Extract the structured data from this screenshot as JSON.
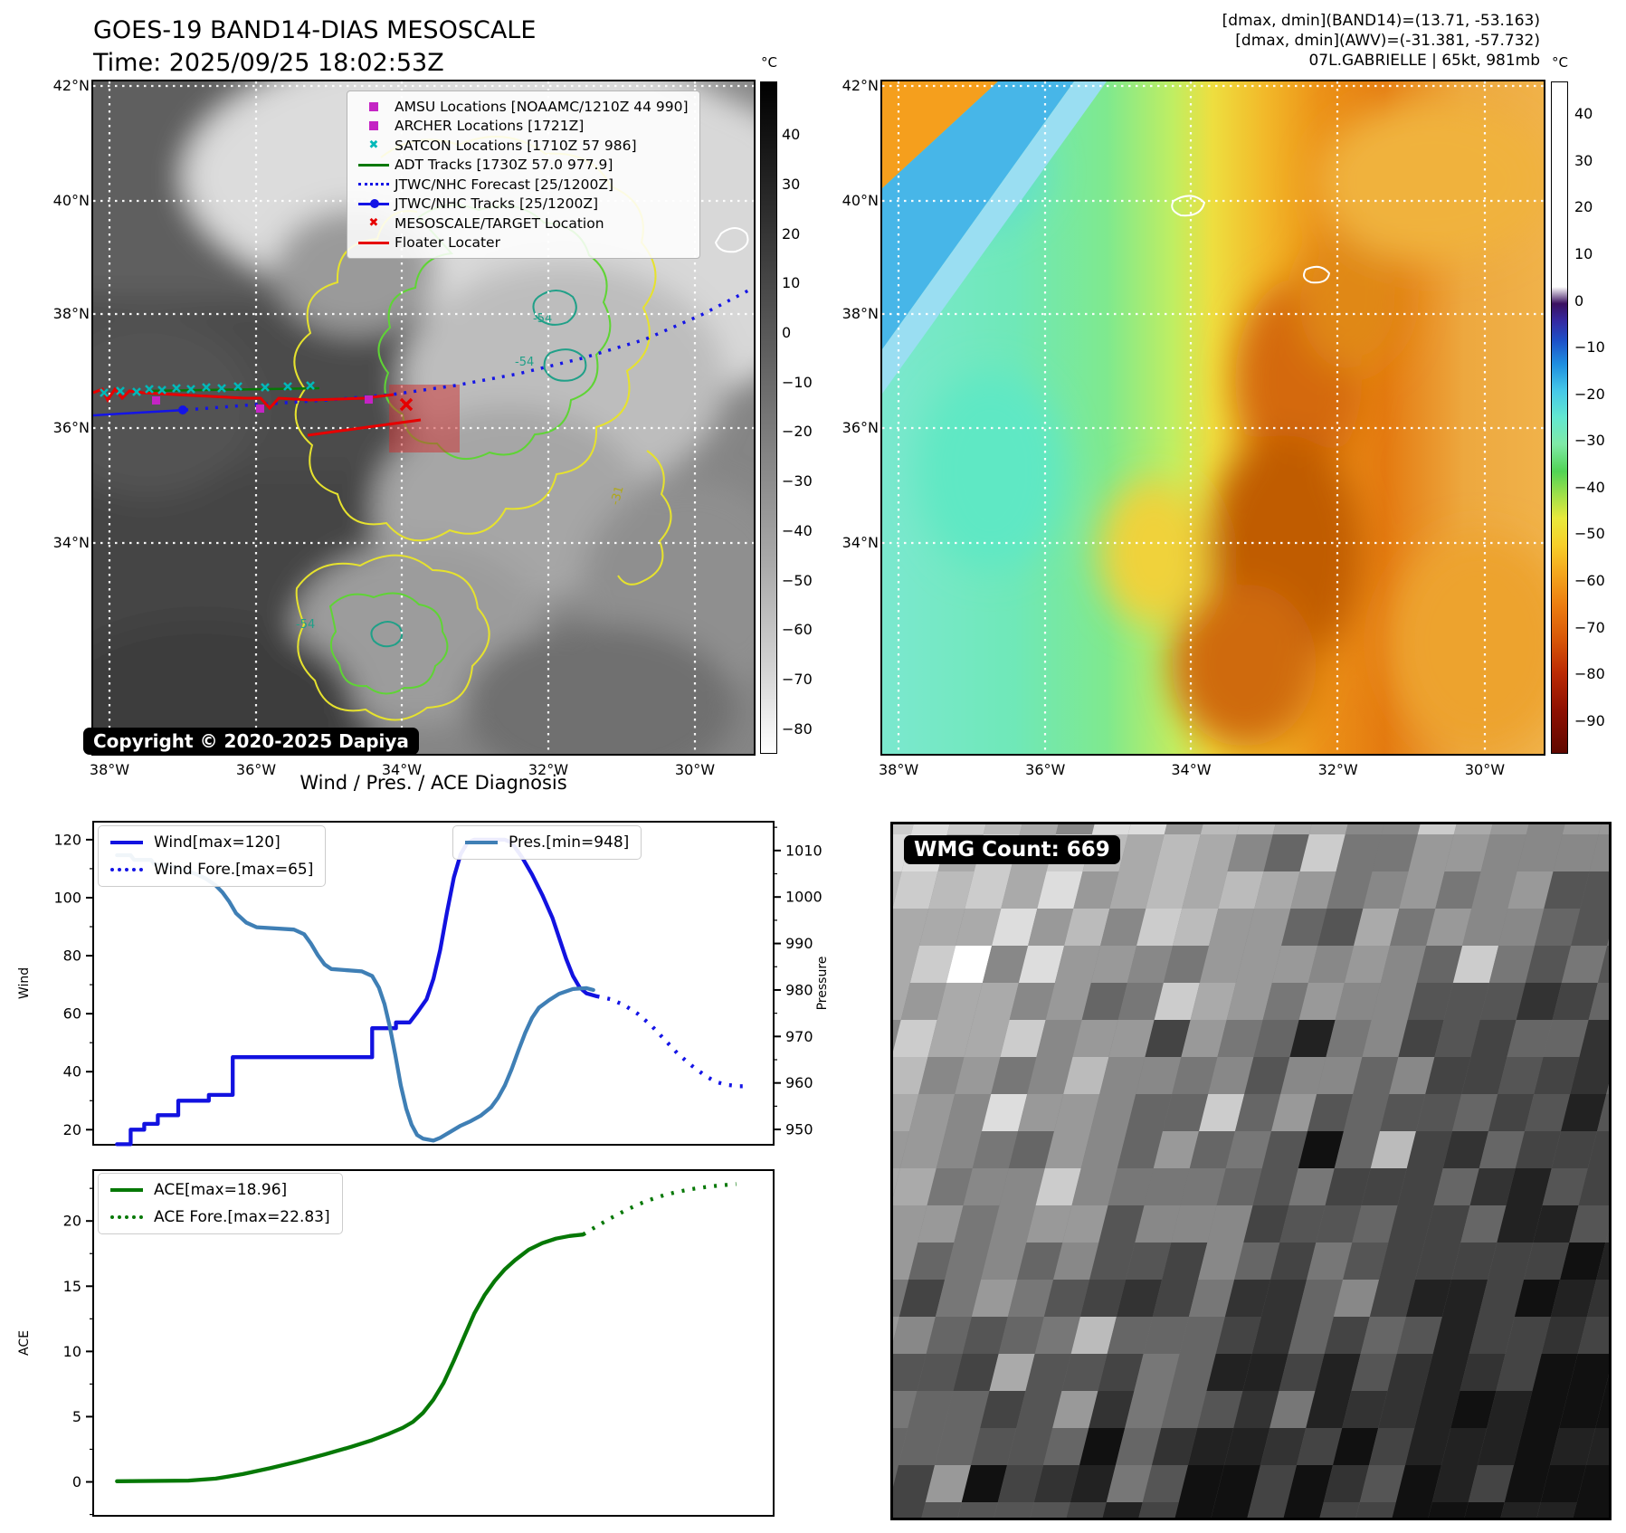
{
  "header": {
    "title_line1": "GOES-19 BAND14-DIAS MESOSCALE",
    "title_line2": "Time: 2025/09/25 18:02:53Z",
    "info_lines": [
      "[dmax, dmin](BAND14)=(13.71, -53.163)",
      "[dmax, dmin](AWV)=(-31.381, -57.732)",
      "07L.GABRIELLE | 65kt, 981mb"
    ]
  },
  "band14_map": {
    "lat_labels": [
      "42°N",
      "40°N",
      "38°N",
      "36°N",
      "34°N"
    ],
    "lon_labels": [
      "38°W",
      "36°W",
      "34°W",
      "32°W",
      "30°W"
    ],
    "copyright": "Copyright © 2020-2025 Dapiya",
    "contour_labels": [
      "-54",
      "-54",
      "-31",
      "-54"
    ],
    "legend_items": [
      {
        "label": "AMSU Locations [NOAAMC/1210Z 44 990]",
        "marker": "square",
        "color": "#c424c4"
      },
      {
        "label": "ARCHER Locations [1721Z]",
        "marker": "square",
        "color": "#c424c4"
      },
      {
        "label": "SATCON Locations [1710Z 57 986]",
        "marker": "x",
        "color": "#00b8b8"
      },
      {
        "label": "ADT Tracks [1730Z 57.0 977.9]",
        "marker": "line",
        "color": "#067806"
      },
      {
        "label": "JTWC/NHC Forecast [25/1200Z]",
        "marker": "dotted",
        "color": "#1414e6"
      },
      {
        "label": "JTWC/NHC Tracks [25/1200Z]",
        "marker": "line-dot",
        "color": "#1414e6"
      },
      {
        "label": "MESOSCALE/TARGET Location",
        "marker": "x",
        "color": "#e60000"
      },
      {
        "label": "Floater Locater",
        "marker": "line",
        "color": "#e60000"
      }
    ],
    "colorbar": {
      "unit": "°C",
      "vmax": 50.8,
      "vmin": -85,
      "ticks": [
        40,
        30,
        20,
        10,
        0,
        -10,
        -20,
        -30,
        -40,
        -50,
        -60,
        -70,
        -80
      ]
    }
  },
  "awv_map": {
    "lat_labels": [
      "42°N",
      "40°N",
      "38°N",
      "36°N",
      "34°N"
    ],
    "lon_labels": [
      "38°W",
      "36°W",
      "34°W",
      "32°W",
      "30°W"
    ],
    "colorbar": {
      "unit": "°C",
      "vmax": 47,
      "vmin": -97,
      "ticks": [
        40,
        30,
        20,
        10,
        0,
        -10,
        -20,
        -30,
        -40,
        -50,
        -60,
        -70,
        -80,
        -90
      ]
    }
  },
  "wmg_panel": {
    "label": "WMG Count: 669"
  },
  "chart_data": [
    {
      "type": "line",
      "title": "Wind / Pres. / ACE Diagnosis",
      "xlabel": "",
      "ylabel": "Wind",
      "y2label": "Pressure",
      "ylim": [
        14.8,
        126.2
      ],
      "yticks": [
        20,
        40,
        60,
        80,
        100,
        120
      ],
      "y2lim": [
        946.7,
        1016.2
      ],
      "y2ticks": [
        950,
        960,
        970,
        980,
        990,
        1000,
        1010
      ],
      "grid": false,
      "series": [
        {
          "name": "Wind[max=120]",
          "axis": "y",
          "style": "solid",
          "color": "#1212e0",
          "points": [
            [
              3.5,
              15
            ],
            [
              5.5,
              15
            ],
            [
              5.5,
              20
            ],
            [
              7.5,
              20
            ],
            [
              7.5,
              22
            ],
            [
              9.5,
              22
            ],
            [
              9.5,
              25
            ],
            [
              12.5,
              25
            ],
            [
              12.5,
              30
            ],
            [
              17,
              30
            ],
            [
              17,
              32
            ],
            [
              20.5,
              32
            ],
            [
              20.5,
              45
            ],
            [
              41,
              45
            ],
            [
              41,
              55
            ],
            [
              44.5,
              55
            ],
            [
              44.5,
              57
            ],
            [
              46.5,
              57
            ],
            [
              47.5,
              60
            ],
            [
              49,
              65
            ],
            [
              50,
              72
            ],
            [
              51,
              82
            ],
            [
              52,
              95
            ],
            [
              53,
              107
            ],
            [
              54,
              115
            ],
            [
              55,
              119
            ],
            [
              56,
              120
            ],
            [
              60.5,
              120
            ],
            [
              61.5,
              119
            ],
            [
              63,
              114
            ],
            [
              64.5,
              108
            ],
            [
              66,
              101
            ],
            [
              67.5,
              93
            ],
            [
              68.5,
              86
            ],
            [
              69.5,
              79
            ],
            [
              70.5,
              73
            ],
            [
              71.5,
              69
            ],
            [
              72.5,
              67
            ],
            [
              74,
              66
            ]
          ]
        },
        {
          "name": "Wind Fore.[max=65]",
          "axis": "y",
          "style": "dotted",
          "color": "#1414e6",
          "points": [
            [
              74,
              66
            ],
            [
              76,
              65
            ],
            [
              78,
              63
            ],
            [
              80,
              60
            ],
            [
              82,
              56
            ],
            [
              84,
              51
            ],
            [
              86,
              46
            ],
            [
              88,
              42
            ],
            [
              90,
              38.5
            ],
            [
              91.5,
              36.5
            ],
            [
              93,
              35.5
            ],
            [
              95,
              35
            ],
            [
              96.5,
              35
            ]
          ]
        },
        {
          "name": "Pres.[min=948]",
          "axis": "y2",
          "style": "solid",
          "color": "#3f7fb5",
          "points": [
            [
              3.5,
              1009
            ],
            [
              5.5,
              1009
            ],
            [
              6,
              1008
            ],
            [
              8.5,
              1008
            ],
            [
              9,
              1007
            ],
            [
              12,
              1006.5
            ],
            [
              13,
              1006
            ],
            [
              15,
              1005
            ],
            [
              16.5,
              1004
            ],
            [
              18,
              1002.5
            ],
            [
              19,
              1001
            ],
            [
              20,
              999
            ],
            [
              21,
              996.5
            ],
            [
              22.5,
              994.5
            ],
            [
              24,
              993.5
            ],
            [
              29.5,
              993
            ],
            [
              31,
              992
            ],
            [
              32,
              990
            ],
            [
              33,
              987.5
            ],
            [
              34,
              985.5
            ],
            [
              35,
              984.5
            ],
            [
              39.5,
              984
            ],
            [
              41,
              983
            ],
            [
              42,
              980.5
            ],
            [
              42.8,
              977
            ],
            [
              43.6,
              972
            ],
            [
              44.4,
              966
            ],
            [
              45.2,
              959.5
            ],
            [
              46,
              954.5
            ],
            [
              46.8,
              951
            ],
            [
              47.6,
              948.8
            ],
            [
              48.5,
              948
            ],
            [
              50,
              947.6
            ],
            [
              51,
              948.2
            ],
            [
              52.5,
              949.5
            ],
            [
              54,
              950.8
            ],
            [
              55.5,
              951.8
            ],
            [
              57,
              953
            ],
            [
              58.5,
              954.8
            ],
            [
              59.5,
              956.8
            ],
            [
              60.5,
              959.5
            ],
            [
              61.5,
              963
            ],
            [
              62.5,
              967
            ],
            [
              63.5,
              970.8
            ],
            [
              64.5,
              974
            ],
            [
              65.5,
              976.2
            ],
            [
              67,
              977.8
            ],
            [
              68.5,
              979.2
            ],
            [
              70.5,
              980.2
            ],
            [
              72.5,
              980.4
            ],
            [
              73.5,
              980
            ]
          ]
        }
      ]
    },
    {
      "type": "line",
      "title": "",
      "xlabel": "",
      "ylabel": "ACE",
      "ylim": [
        -2.6,
        23.9
      ],
      "yticks": [
        0,
        5,
        10,
        15,
        20
      ],
      "grid": false,
      "series": [
        {
          "name": "ACE[max=18.96]",
          "axis": "y",
          "style": "solid",
          "color": "#067806",
          "points": [
            [
              3.5,
              0.05
            ],
            [
              14,
              0.1
            ],
            [
              18,
              0.25
            ],
            [
              22,
              0.6
            ],
            [
              26,
              1.05
            ],
            [
              30,
              1.55
            ],
            [
              34,
              2.1
            ],
            [
              38,
              2.7
            ],
            [
              41,
              3.2
            ],
            [
              43.5,
              3.7
            ],
            [
              45.5,
              4.15
            ],
            [
              47,
              4.6
            ],
            [
              48.5,
              5.3
            ],
            [
              50,
              6.3
            ],
            [
              51.5,
              7.6
            ],
            [
              53,
              9.3
            ],
            [
              54.5,
              11.1
            ],
            [
              56,
              12.9
            ],
            [
              57.5,
              14.3
            ],
            [
              59,
              15.4
            ],
            [
              60.5,
              16.3
            ],
            [
              62,
              17.0
            ],
            [
              64,
              17.8
            ],
            [
              66,
              18.3
            ],
            [
              68,
              18.65
            ],
            [
              70,
              18.85
            ],
            [
              72,
              18.96
            ]
          ]
        },
        {
          "name": "ACE Fore.[max=22.83]",
          "axis": "y",
          "style": "dotted",
          "color": "#067806",
          "points": [
            [
              72,
              18.96
            ],
            [
              74,
              19.6
            ],
            [
              76,
              20.2
            ],
            [
              78,
              20.75
            ],
            [
              80,
              21.25
            ],
            [
              82,
              21.65
            ],
            [
              84,
              22.0
            ],
            [
              86,
              22.25
            ],
            [
              88,
              22.45
            ],
            [
              90,
              22.6
            ],
            [
              92,
              22.72
            ],
            [
              94.5,
              22.83
            ]
          ]
        }
      ]
    }
  ]
}
